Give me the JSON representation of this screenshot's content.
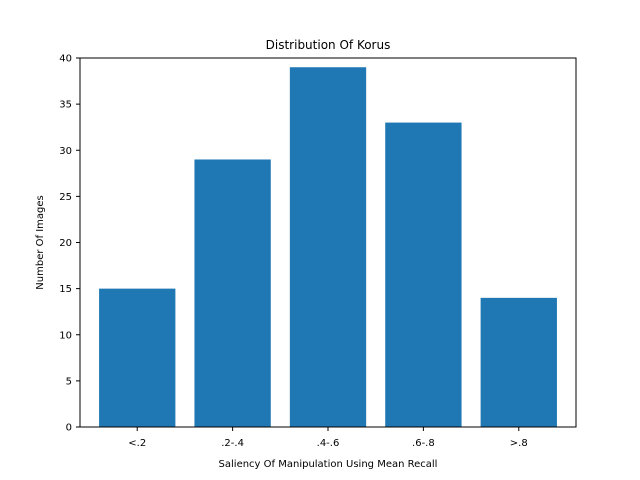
{
  "chart_data": {
    "type": "bar",
    "title": "Distribution Of Korus",
    "xlabel": "Saliency Of Manipulation Using Mean Recall",
    "ylabel": "Number Of Images",
    "categories": [
      "<.2",
      ".2-.4",
      ".4-.6",
      ".6-.8",
      ">.8"
    ],
    "values": [
      15,
      29,
      39,
      33,
      14
    ],
    "ylim": [
      0,
      40
    ],
    "yticks": [
      0,
      5,
      10,
      15,
      20,
      25,
      30,
      35,
      40
    ],
    "grid": false,
    "bar_color": "#1f77b4"
  }
}
